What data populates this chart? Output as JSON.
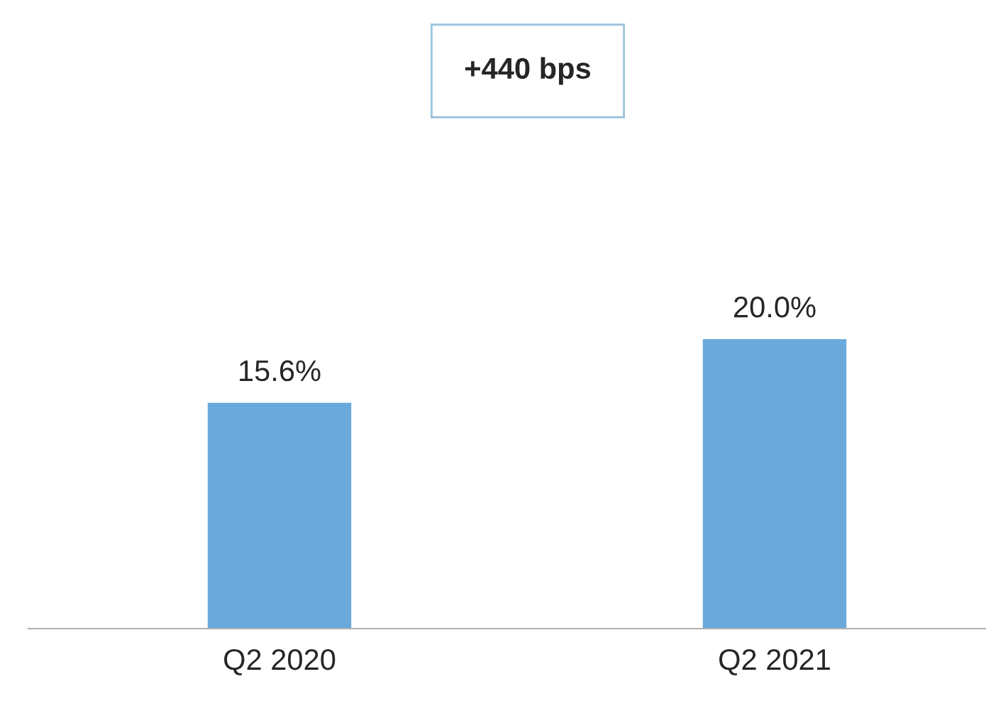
{
  "chart_data": {
    "type": "bar",
    "categories": [
      "Q2 2020",
      "Q2 2021"
    ],
    "values": [
      15.6,
      20.0
    ],
    "value_labels": [
      "15.6%",
      "20.0%"
    ],
    "color": "#6aa9dc",
    "annotations": [
      "+440 bps"
    ]
  }
}
